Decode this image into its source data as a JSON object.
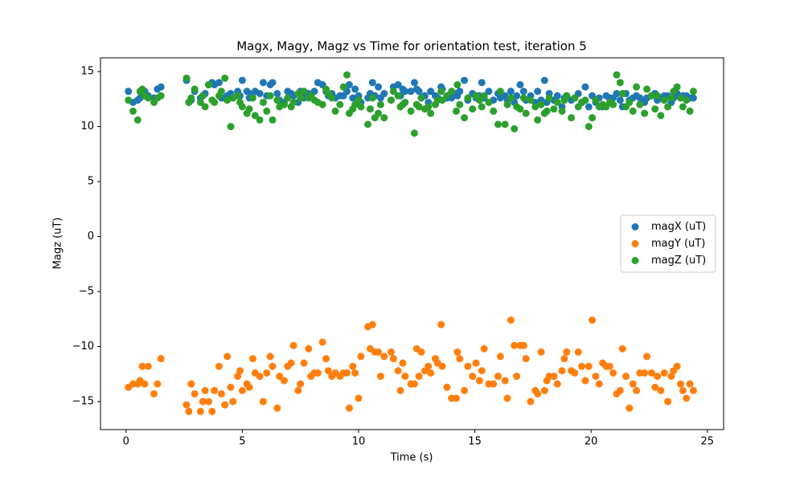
{
  "chart_data": {
    "type": "scatter",
    "title": "Magx, Magy, Magz vs Time for orientation test, iteration 5",
    "x_label": "Time (s)",
    "y_label": "Magz (uT)",
    "x": [
      0.1,
      0.3,
      0.5,
      0.6,
      0.7,
      0.8,
      0.95,
      1.2,
      1.35,
      1.5,
      2.6,
      2.7,
      2.8,
      2.95,
      3.2,
      3.3,
      3.4,
      3.55,
      3.7,
      3.8,
      4.0,
      4.1,
      4.25,
      4.35,
      4.5,
      4.6,
      4.8,
      4.9,
      5.0,
      5.2,
      5.3,
      5.45,
      5.55,
      5.75,
      5.9,
      6.05,
      6.2,
      6.3,
      6.5,
      6.6,
      6.8,
      6.95,
      7.1,
      7.2,
      7.4,
      7.5,
      7.65,
      7.85,
      7.95,
      8.1,
      8.25,
      8.45,
      8.6,
      8.7,
      8.85,
      9.0,
      9.2,
      9.35,
      9.5,
      9.6,
      9.75,
      9.85,
      10.0,
      10.1,
      10.4,
      10.5,
      10.6,
      10.7,
      10.85,
      10.95,
      11.1,
      11.4,
      11.5,
      11.7,
      11.8,
      11.9,
      12.0,
      12.25,
      12.4,
      12.5,
      12.6,
      12.7,
      12.85,
      13.0,
      13.1,
      13.3,
      13.4,
      13.55,
      13.6,
      13.8,
      14.0,
      14.2,
      14.25,
      14.35,
      14.55,
      14.7,
      14.9,
      15.05,
      15.2,
      15.3,
      15.4,
      15.6,
      15.8,
      16.0,
      16.1,
      16.3,
      16.4,
      16.55,
      16.7,
      16.8,
      16.95,
      17.1,
      17.2,
      17.4,
      17.6,
      17.7,
      17.85,
      18.0,
      18.1,
      18.2,
      18.4,
      18.55,
      18.75,
      18.85,
      18.95,
      19.15,
      19.3,
      19.45,
      19.6,
      19.75,
      19.9,
      20.05,
      20.2,
      20.35,
      20.5,
      20.65,
      20.8,
      20.95,
      21.1,
      21.25,
      21.35,
      21.5,
      21.65,
      21.8,
      21.95,
      22.1,
      22.3,
      22.4,
      22.6,
      22.75,
      22.85,
      23.0,
      23.15,
      23.3,
      23.45,
      23.55,
      23.7,
      23.85,
      23.95,
      24.1,
      24.25,
      24.4
    ],
    "series": [
      {
        "name": "magX (uT)",
        "color": "#1f77b4",
        "values": [
          13.2,
          12.2,
          12.4,
          12.6,
          12.8,
          13.2,
          12.8,
          12.6,
          13.4,
          13.6,
          14.2,
          12.2,
          12.4,
          13.2,
          12.6,
          12.8,
          13.0,
          13.8,
          14.0,
          13.8,
          14.0,
          12.6,
          12.6,
          12.8,
          13.0,
          12.6,
          13.2,
          12.8,
          14.2,
          13.2,
          12.6,
          13.0,
          13.2,
          13.0,
          14.0,
          12.8,
          13.8,
          14.0,
          13.0,
          12.4,
          12.2,
          13.2,
          13.0,
          12.8,
          12.2,
          13.2,
          12.6,
          13.0,
          12.8,
          13.2,
          14.0,
          13.8,
          13.2,
          12.8,
          13.0,
          12.6,
          12.8,
          12.8,
          13.2,
          13.8,
          12.6,
          13.4,
          12.8,
          12.2,
          12.6,
          13.0,
          14.0,
          12.8,
          13.6,
          12.6,
          13.0,
          12.4,
          13.6,
          13.8,
          12.8,
          13.4,
          13.2,
          13.2,
          14.0,
          13.4,
          13.2,
          12.6,
          12.8,
          12.2,
          13.2,
          12.8,
          12.6,
          13.6,
          13.4,
          12.6,
          12.6,
          13.0,
          12.8,
          13.2,
          14.2,
          12.4,
          13.0,
          12.6,
          12.8,
          14.0,
          12.6,
          13.2,
          12.4,
          13.0,
          12.6,
          12.8,
          12.4,
          13.2,
          12.2,
          12.8,
          13.8,
          13.2,
          12.4,
          12.8,
          12.2,
          13.2,
          12.4,
          14.2,
          12.2,
          13.0,
          12.4,
          12.8,
          11.8,
          12.6,
          12.8,
          12.4,
          12.6,
          13.0,
          12.2,
          13.6,
          11.8,
          12.8,
          12.2,
          12.6,
          11.8,
          12.8,
          12.6,
          12.6,
          13.0,
          12.4,
          11.8,
          13.0,
          12.4,
          12.6,
          12.8,
          12.6,
          12.2,
          12.6,
          12.8,
          13.0,
          12.4,
          12.6,
          12.8,
          12.8,
          12.2,
          12.6,
          13.0,
          12.6,
          12.8,
          12.8,
          12.6,
          12.6
        ]
      },
      {
        "name": "magY (uT)",
        "color": "#ff7f0e",
        "values": [
          -13.7,
          -13.4,
          -13.4,
          -13.1,
          -11.8,
          -13.4,
          -11.8,
          -14.3,
          -13.4,
          -11.1,
          -15.3,
          -15.9,
          -13.4,
          -14.3,
          -15.9,
          -15.0,
          -14.0,
          -15.0,
          -15.9,
          -14.0,
          -11.8,
          -14.3,
          -15.3,
          -10.9,
          -13.7,
          -15.0,
          -12.7,
          -12.2,
          -14.0,
          -13.4,
          -13.7,
          -11.1,
          -12.4,
          -12.7,
          -15.0,
          -12.4,
          -10.9,
          -11.8,
          -15.6,
          -12.7,
          -13.1,
          -11.8,
          -11.5,
          -9.9,
          -14.0,
          -13.4,
          -11.5,
          -10.2,
          -12.7,
          -12.4,
          -12.4,
          -9.6,
          -11.1,
          -12.2,
          -12.7,
          -12.4,
          -12.7,
          -12.4,
          -12.4,
          -15.6,
          -11.8,
          -12.4,
          -14.7,
          -10.9,
          -8.2,
          -10.2,
          -8.0,
          -10.5,
          -10.5,
          -12.7,
          -10.9,
          -10.5,
          -11.1,
          -12.2,
          -14.0,
          -11.5,
          -12.7,
          -13.4,
          -13.4,
          -10.2,
          -12.7,
          -10.5,
          -12.2,
          -11.8,
          -12.4,
          -11.1,
          -11.5,
          -8.0,
          -11.8,
          -13.7,
          -14.7,
          -14.7,
          -10.5,
          -11.1,
          -14.0,
          -11.8,
          -12.7,
          -11.5,
          -13.1,
          -12.2,
          -10.2,
          -13.4,
          -13.4,
          -12.7,
          -10.9,
          -13.1,
          -14.7,
          -7.6,
          -9.9,
          -12.7,
          -9.9,
          -9.9,
          -11.1,
          -15.0,
          -14.0,
          -14.3,
          -10.5,
          -14.0,
          -13.1,
          -12.7,
          -12.7,
          -13.4,
          -12.2,
          -11.1,
          -10.5,
          -12.2,
          -12.4,
          -10.5,
          -11.8,
          -13.1,
          -11.8,
          -7.6,
          -12.7,
          -13.4,
          -11.5,
          -11.8,
          -11.8,
          -12.4,
          -14.3,
          -14.0,
          -10.2,
          -12.7,
          -15.6,
          -13.4,
          -14.0,
          -12.4,
          -12.4,
          -10.9,
          -12.4,
          -13.7,
          -12.7,
          -14.0,
          -12.4,
          -15.0,
          -12.7,
          -12.2,
          -11.8,
          -13.4,
          -14.0,
          -14.7,
          -13.4,
          -14.0
        ]
      },
      {
        "name": "magZ (uT)",
        "color": "#2ca02c",
        "values": [
          12.4,
          11.4,
          10.6,
          13.2,
          13.4,
          12.8,
          12.6,
          12.2,
          12.6,
          12.8,
          14.4,
          12.2,
          12.6,
          13.4,
          12.2,
          12.8,
          11.8,
          13.8,
          12.4,
          12.2,
          12.8,
          13.2,
          14.4,
          12.4,
          10.0,
          12.6,
          12.8,
          12.2,
          11.8,
          11.2,
          11.6,
          12.6,
          11.0,
          10.6,
          12.2,
          11.4,
          12.8,
          10.6,
          12.4,
          11.8,
          12.0,
          12.6,
          11.8,
          12.2,
          13.0,
          12.6,
          13.2,
          12.6,
          12.8,
          12.4,
          12.2,
          12.0,
          13.4,
          13.0,
          12.6,
          11.4,
          12.0,
          13.6,
          14.7,
          11.2,
          11.6,
          12.0,
          12.4,
          11.8,
          10.2,
          11.6,
          12.6,
          10.8,
          11.2,
          12.0,
          10.8,
          12.4,
          13.2,
          12.8,
          11.8,
          12.0,
          12.2,
          11.4,
          9.4,
          12.0,
          11.8,
          12.6,
          11.6,
          11.8,
          11.2,
          12.0,
          12.4,
          13.2,
          12.4,
          12.8,
          13.2,
          11.4,
          13.8,
          12.0,
          10.8,
          12.6,
          11.6,
          12.8,
          12.4,
          11.8,
          12.8,
          12.2,
          11.4,
          10.2,
          13.2,
          10.2,
          12.0,
          12.6,
          9.8,
          11.8,
          11.6,
          12.6,
          11.2,
          12.4,
          11.8,
          10.6,
          12.0,
          11.2,
          11.4,
          12.6,
          11.6,
          12.2,
          11.4,
          12.4,
          12.8,
          10.8,
          12.6,
          11.8,
          12.2,
          12.4,
          10.0,
          10.8,
          12.4,
          11.8,
          12.0,
          11.8,
          12.2,
          12.0,
          14.7,
          14.0,
          13.0,
          11.8,
          12.2,
          11.4,
          13.6,
          12.0,
          11.2,
          13.4,
          12.8,
          11.6,
          12.8,
          11.0,
          12.4,
          11.8,
          12.6,
          13.2,
          13.6,
          12.6,
          11.8,
          12.4,
          11.4,
          13.2
        ]
      }
    ],
    "xlim": [
      -1.1,
      25.7
    ],
    "xticks": [
      0,
      5,
      10,
      15,
      20,
      25
    ],
    "ylim": [
      -17.55,
      16.25
    ],
    "yticks": [
      {
        "value": -15,
        "label": "−15"
      },
      {
        "value": -10,
        "label": "−10"
      },
      {
        "value": -5,
        "label": "−5"
      },
      0,
      5,
      10,
      15
    ],
    "legend": "center right"
  }
}
